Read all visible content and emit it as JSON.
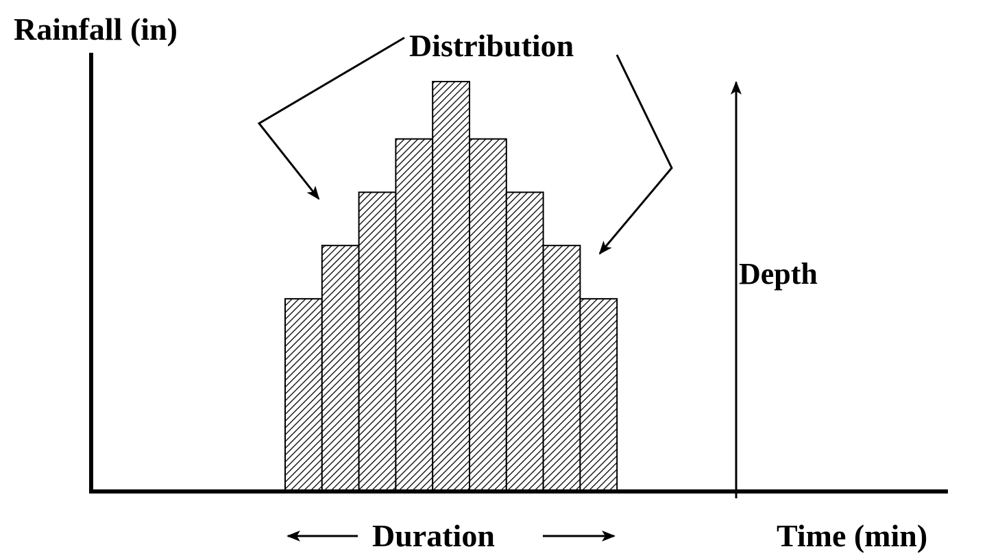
{
  "diagram": {
    "y_axis_label": "Rainfall (in)",
    "x_axis_label": "Time (min)",
    "distribution_label": "Distribution",
    "depth_label": "Depth",
    "duration_label": "Duration",
    "relative_bar_depths": [
      0.47,
      0.6,
      0.73,
      0.86,
      1.0,
      0.86,
      0.73,
      0.6,
      0.47
    ],
    "colors": {
      "ink": "#000000",
      "background": "#ffffff"
    }
  }
}
